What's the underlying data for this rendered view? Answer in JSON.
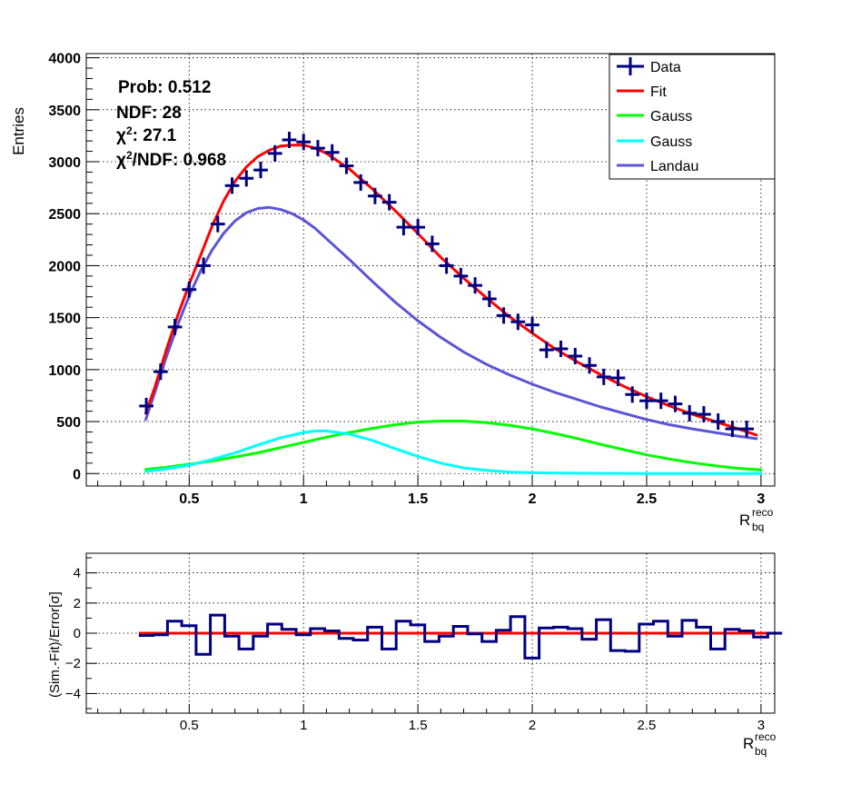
{
  "chart_data": [
    {
      "type": "line",
      "ylabel": "Entries",
      "xlabel_base": "R",
      "xlabel_sup": "reco",
      "xlabel_sub": "bq",
      "xlim": [
        0.05,
        3.06
      ],
      "ylim": [
        -120,
        4040
      ],
      "xticks": [
        0.5,
        1,
        1.5,
        2,
        2.5,
        3
      ],
      "xtick_labels": [
        "0.5",
        "1",
        "1.5",
        "2",
        "2.5",
        "3"
      ],
      "yticks": [
        0,
        500,
        1000,
        1500,
        2000,
        2500,
        3000,
        3500,
        4000
      ],
      "ytick_labels": [
        "0",
        "500",
        "1000",
        "1500",
        "2000",
        "2500",
        "3000",
        "3500",
        "4000"
      ],
      "grid": true,
      "stats": {
        "prob": "Prob: 0.512",
        "ndf": "NDF: 28",
        "chi2_a": "χ",
        "chi2_b": "2",
        "chi2_c": ": 27.1",
        "chi2ndf_a": "χ",
        "chi2ndf_b": "2",
        "chi2ndf_c": "/NDF: 0.968"
      },
      "legend_position": "top-right",
      "legend": [
        "Data",
        "Fit",
        "Gauss",
        "Gauss",
        "Landau"
      ],
      "bin_width": 0.0625,
      "data_points": {
        "name": "Data",
        "color": "#000080",
        "x": [
          0.3125,
          0.375,
          0.4375,
          0.5,
          0.5625,
          0.625,
          0.6875,
          0.75,
          0.8125,
          0.875,
          0.9375,
          1.0,
          1.0625,
          1.125,
          1.1875,
          1.25,
          1.3125,
          1.375,
          1.4375,
          1.5,
          1.5625,
          1.625,
          1.6875,
          1.75,
          1.8125,
          1.875,
          1.9375,
          2.0,
          2.0625,
          2.125,
          2.1875,
          2.25,
          2.3125,
          2.375,
          2.4375,
          2.5,
          2.5625,
          2.625,
          2.6875,
          2.75,
          2.8125,
          2.875,
          2.9375
        ],
        "y": [
          650,
          980,
          1410,
          1770,
          2000,
          2400,
          2770,
          2840,
          2920,
          3080,
          3210,
          3190,
          3130,
          3090,
          2960,
          2800,
          2670,
          2610,
          2370,
          2370,
          2210,
          2000,
          1900,
          1810,
          1680,
          1520,
          1460,
          1430,
          1190,
          1200,
          1130,
          1040,
          930,
          920,
          760,
          700,
          700,
          670,
          580,
          570,
          500,
          430,
          430
        ]
      },
      "curves": [
        {
          "name": "Fit",
          "color": "#ff0000",
          "x": [
            0.31,
            0.35,
            0.4,
            0.45,
            0.5,
            0.55,
            0.6,
            0.65,
            0.7,
            0.75,
            0.8,
            0.85,
            0.9,
            0.95,
            1.0,
            1.05,
            1.1,
            1.2,
            1.3,
            1.4,
            1.5,
            1.6,
            1.7,
            1.8,
            1.9,
            2.0,
            2.1,
            2.2,
            2.3,
            2.4,
            2.5,
            2.6,
            2.7,
            2.8,
            2.9,
            2.98
          ],
          "y": [
            580,
            830,
            1190,
            1520,
            1820,
            2100,
            2380,
            2620,
            2810,
            2950,
            3050,
            3110,
            3150,
            3160,
            3160,
            3130,
            3080,
            2930,
            2740,
            2530,
            2310,
            2080,
            1880,
            1690,
            1510,
            1350,
            1200,
            1070,
            950,
            840,
            740,
            650,
            570,
            500,
            430,
            370
          ]
        },
        {
          "name": "Gauss",
          "color": "#00ff00",
          "x": [
            0.31,
            0.4,
            0.5,
            0.6,
            0.7,
            0.8,
            0.9,
            1.0,
            1.1,
            1.2,
            1.3,
            1.4,
            1.5,
            1.6,
            1.7,
            1.8,
            1.9,
            2.0,
            2.1,
            2.2,
            2.3,
            2.4,
            2.5,
            2.6,
            2.7,
            2.8,
            2.9,
            3.0
          ],
          "y": [
            40,
            60,
            90,
            120,
            160,
            200,
            250,
            300,
            350,
            395,
            435,
            470,
            495,
            505,
            505,
            490,
            465,
            430,
            385,
            335,
            280,
            230,
            180,
            140,
            105,
            75,
            50,
            35
          ]
        },
        {
          "name": "Gauss",
          "color": "#00ffff",
          "x": [
            0.31,
            0.4,
            0.5,
            0.6,
            0.7,
            0.8,
            0.9,
            1.0,
            1.05,
            1.1,
            1.2,
            1.3,
            1.4,
            1.5,
            1.6,
            1.7,
            1.8,
            1.9,
            2.0,
            2.2,
            2.5,
            3.0
          ],
          "y": [
            20,
            45,
            80,
            135,
            200,
            275,
            345,
            395,
            410,
            410,
            380,
            320,
            240,
            165,
            100,
            55,
            30,
            15,
            8,
            3,
            1,
            0
          ]
        },
        {
          "name": "Landau",
          "color": "#5b55d6",
          "x": [
            0.31,
            0.35,
            0.4,
            0.45,
            0.5,
            0.55,
            0.6,
            0.65,
            0.7,
            0.75,
            0.8,
            0.85,
            0.9,
            0.95,
            1.0,
            1.05,
            1.1,
            1.2,
            1.3,
            1.4,
            1.5,
            1.6,
            1.7,
            1.8,
            1.9,
            2.0,
            2.1,
            2.2,
            2.3,
            2.4,
            2.5,
            2.6,
            2.7,
            2.8,
            2.9,
            2.98
          ],
          "y": [
            520,
            780,
            1120,
            1430,
            1710,
            1950,
            2150,
            2310,
            2430,
            2510,
            2550,
            2560,
            2540,
            2500,
            2440,
            2360,
            2260,
            2060,
            1850,
            1650,
            1470,
            1310,
            1170,
            1050,
            950,
            860,
            780,
            710,
            640,
            580,
            520,
            470,
            430,
            395,
            360,
            335
          ]
        }
      ]
    },
    {
      "type": "line",
      "ylabel": "(Sim.-Fit)/Error[σ]",
      "xlabel_base": "R",
      "xlabel_sup": "reco",
      "xlabel_sub": "bq",
      "xlim": [
        0.05,
        3.06
      ],
      "ylim": [
        -5.3,
        5.3
      ],
      "xticks": [
        0.5,
        1,
        1.5,
        2,
        2.5,
        3
      ],
      "xtick_labels": [
        "0.5",
        "1",
        "1.5",
        "2",
        "2.5",
        "3"
      ],
      "yticks": [
        -4,
        -2,
        0,
        2,
        4
      ],
      "ytick_labels": [
        "−4",
        "−2",
        "0",
        "2",
        "4"
      ],
      "grid": true,
      "residuals": {
        "color": "#000080",
        "bin_width": 0.0625,
        "x_start": 0.28,
        "values": [
          -0.15,
          -0.1,
          0.8,
          0.5,
          -1.4,
          1.2,
          -0.2,
          -1.05,
          -0.2,
          0.6,
          0.25,
          -0.1,
          0.3,
          0.15,
          -0.35,
          -0.45,
          0.4,
          -1.05,
          0.8,
          0.55,
          -0.55,
          -0.2,
          0.45,
          -0.05,
          -0.55,
          0.2,
          1.1,
          -1.65,
          0.35,
          0.4,
          0.3,
          -0.4,
          0.9,
          -1.15,
          -1.2,
          0.6,
          0.8,
          -0.2,
          0.85,
          0.4,
          -1.05,
          0.25,
          0.15,
          -0.25,
          0.0
        ]
      },
      "zero_line": {
        "color": "#ff0000"
      }
    }
  ]
}
